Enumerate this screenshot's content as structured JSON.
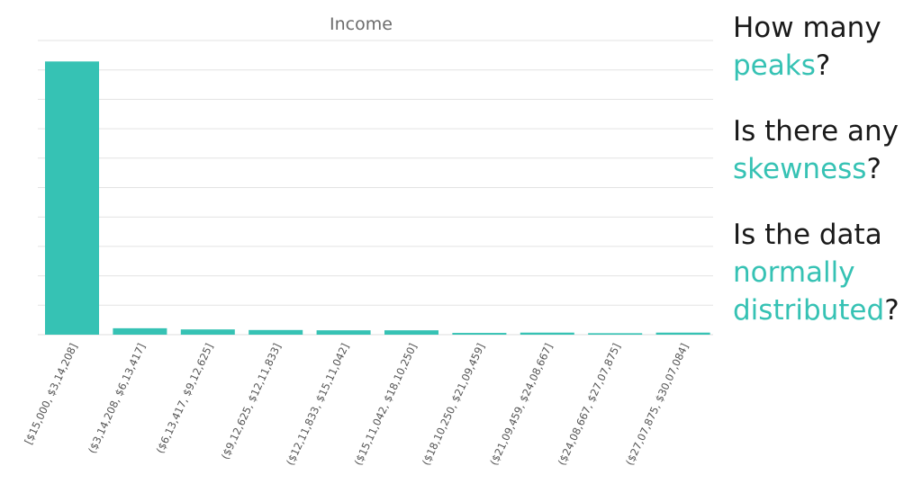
{
  "chart_data": {
    "type": "bar",
    "title": "Income",
    "xlabel": "",
    "ylabel": "",
    "categories": [
      "[$15,000, $3,14,208]",
      "($3,14,208, $6,13,417]",
      "($6,13,417, $9,12,625]",
      "($9,12,625, $12,11,833]",
      "($12,11,833, $15,11,042]",
      "($15,11,042, $18,10,250]",
      "($18,10,250, $21,09,459]",
      "($21,09,459, $24,08,667]",
      "($24,08,667, $27,07,875]",
      "($27,07,875, $30,07,084]"
    ],
    "values": [
      938,
      22,
      18,
      16,
      15,
      15,
      6,
      7,
      5,
      7
    ],
    "ylim": [
      0,
      1010
    ],
    "grid": true,
    "color": "#36c2b4",
    "gridColor": "#e3e3e3"
  },
  "questions": [
    {
      "before": "How many ",
      "accent": "peaks",
      "after": "?"
    },
    {
      "before": "Is there any ",
      "accent": "skewness",
      "after": "?"
    },
    {
      "before": "Is the data ",
      "accent": "normally distributed",
      "after": "?"
    }
  ],
  "accent_color": "#36c2b4"
}
